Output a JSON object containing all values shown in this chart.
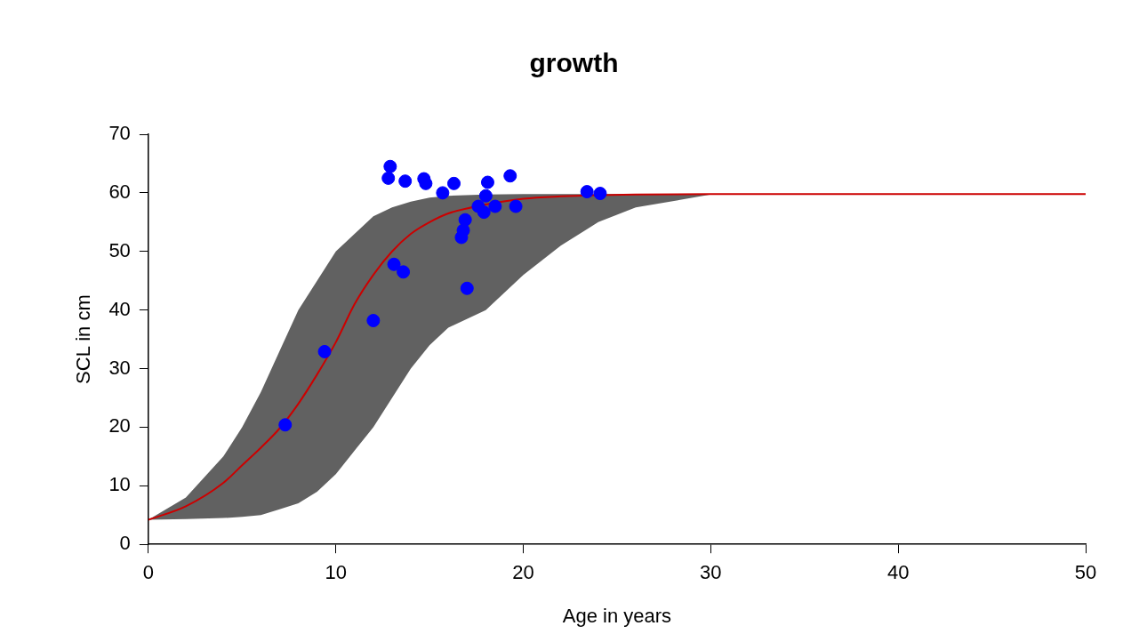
{
  "chart_data": {
    "type": "line",
    "title": "growth",
    "xlabel": "Age in years",
    "ylabel": "SCL in cm",
    "xlim": [
      0,
      50
    ],
    "xticks": [
      0,
      10,
      20,
      30,
      40,
      50
    ],
    "ylim": [
      0,
      70
    ],
    "yticks": [
      0,
      10,
      20,
      30,
      40,
      50,
      60,
      70
    ],
    "line_style": "solid",
    "series": [
      {
        "color": "#cc0000",
        "x": [
          0,
          2,
          4,
          5,
          6,
          7,
          8,
          9,
          10,
          11,
          12,
          13,
          14,
          15,
          16,
          18,
          20,
          22,
          24,
          26,
          30,
          35,
          40,
          45,
          50
        ],
        "values": [
          4.2,
          6.5,
          10.5,
          13.5,
          16.5,
          19.8,
          24,
          29,
          34.5,
          41,
          46,
          50,
          53,
          55,
          56.5,
          58,
          59,
          59.4,
          59.6,
          59.7,
          59.8,
          59.8,
          59.8,
          59.8,
          59.8
        ],
        "lower": [
          4.2,
          4.3,
          4.5,
          4.7,
          5,
          6,
          7,
          9,
          12,
          16,
          20,
          25,
          30,
          34,
          37,
          40,
          46,
          51,
          55,
          57.5,
          59.7,
          59.8,
          59.8,
          59.8,
          59.8
        ],
        "upper": [
          4.2,
          8,
          15,
          20,
          26,
          33,
          40,
          45,
          50,
          53,
          56,
          57.5,
          58.5,
          59.2,
          59.5,
          59.7,
          59.8,
          59.8,
          59.8,
          59.8,
          59.8,
          59.8,
          59.8,
          59.8,
          59.8
        ]
      },
      {
        "type": "scatter",
        "marker": "circle",
        "color": "#0000ff",
        "x": [
          7.3,
          9.4,
          12.0,
          12.9,
          12.8,
          13.1,
          13.6,
          13.7,
          14.7,
          14.8,
          15.7,
          16.3,
          17.0,
          16.7,
          16.8,
          16.9,
          17.6,
          17.9,
          18.1,
          18.0,
          18.5,
          19.3,
          19.6,
          23.4,
          24.1
        ],
        "values": [
          20.4,
          32.9,
          38.2,
          64.5,
          62.5,
          47.8,
          46.5,
          62.0,
          62.4,
          61.6,
          60.0,
          61.6,
          43.7,
          52.4,
          53.6,
          55.4,
          57.7,
          56.7,
          61.8,
          59.5,
          57.7,
          62.9,
          57.7,
          60.2,
          59.9
        ]
      }
    ]
  }
}
